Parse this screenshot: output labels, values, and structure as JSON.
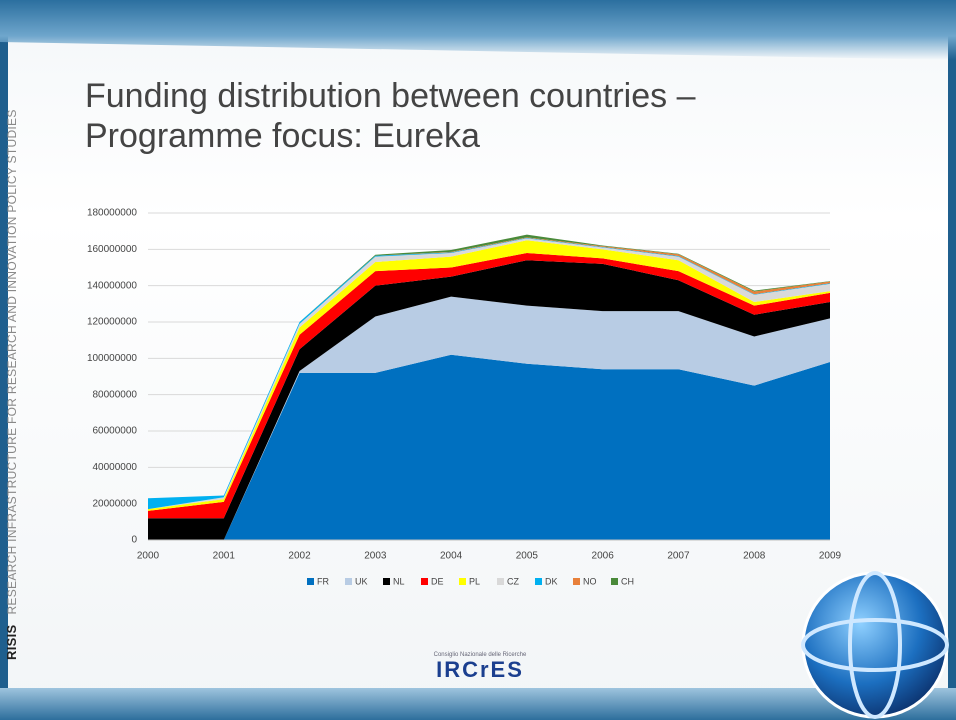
{
  "slide": {
    "side_label": "RISIS",
    "side_text": "RESEARCH INFRASTRUCTURE FOR RESEARCH AND INNOVATION POLICY STUDIES",
    "logo_caption": "Consiglio Nazionale delle Ricerche",
    "logo_name": "IRCrES"
  },
  "chart_data": {
    "type": "stacked_area",
    "title": "Funding distribution between countries – Programme focus: Eureka",
    "categories": [
      "2000",
      "2001",
      "2002",
      "2003",
      "2004",
      "2005",
      "2006",
      "2007",
      "2008",
      "2009"
    ],
    "ylim": [
      0,
      180000000
    ],
    "yticks": [
      0,
      20000000,
      40000000,
      60000000,
      80000000,
      100000000,
      120000000,
      140000000,
      160000000,
      180000000
    ],
    "grid": true,
    "legend": "bottom",
    "series": [
      {
        "name": "FR",
        "color": "#0070c0",
        "values": [
          0,
          0,
          92000000,
          92000000,
          102000000,
          97000000,
          94000000,
          94000000,
          85000000,
          98000000
        ]
      },
      {
        "name": "UK",
        "color": "#b8cce4",
        "values": [
          0,
          0,
          1000000,
          31000000,
          32000000,
          32000000,
          32000000,
          32000000,
          27000000,
          24000000
        ]
      },
      {
        "name": "NL",
        "color": "#000000",
        "values": [
          12000000,
          12000000,
          12000000,
          17000000,
          11000000,
          25000000,
          26000000,
          17000000,
          12000000,
          9000000
        ]
      },
      {
        "name": "DE",
        "color": "#ff0000",
        "values": [
          4000000,
          9000000,
          8000000,
          8000000,
          5000000,
          4000000,
          3000000,
          5000000,
          5000000,
          5000000
        ]
      },
      {
        "name": "PL",
        "color": "#ffff00",
        "values": [
          1000000,
          1500000,
          4000000,
          5000000,
          6000000,
          7000000,
          5000000,
          6000000,
          2000000,
          1000000
        ]
      },
      {
        "name": "CZ",
        "color": "#d9d9d9",
        "values": [
          0,
          1000000,
          2000000,
          3000000,
          2000000,
          1000000,
          1000000,
          2000000,
          4000000,
          4000000
        ]
      },
      {
        "name": "DK",
        "color": "#00b0f0",
        "values": [
          6000000,
          1000000,
          1000000,
          500000,
          300000,
          300000,
          300000,
          300000,
          300000,
          300000
        ]
      },
      {
        "name": "NO",
        "color": "#e8803a",
        "values": [
          0,
          0,
          0,
          0,
          300000,
          300000,
          500000,
          1000000,
          1500000,
          1000000
        ]
      },
      {
        "name": "CH",
        "color": "#4a8a3a",
        "values": [
          0,
          0,
          0,
          500000,
          1000000,
          1500000,
          300000,
          300000,
          500000,
          200000
        ]
      }
    ]
  }
}
